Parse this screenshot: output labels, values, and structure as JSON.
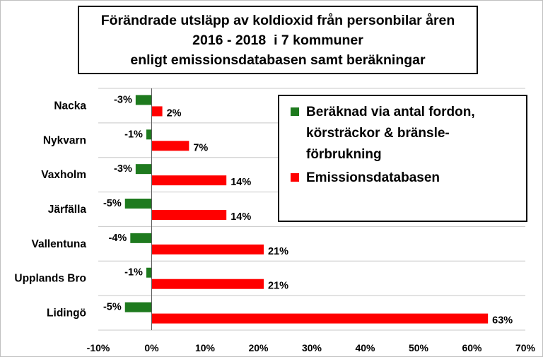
{
  "chart_data": {
    "type": "bar",
    "orientation": "horizontal",
    "title_lines": [
      "Förändrade utsläpp av koldioxid från personbilar åren",
      "2016 - 2018  i 7 kommuner",
      "enligt emissionsdatabasen samt beräkningar"
    ],
    "categories": [
      "Nacka",
      "Nykvarn",
      "Vaxholm",
      "Järfälla",
      "Vallentuna",
      "Upplands Bro",
      "Lidingö"
    ],
    "series": [
      {
        "name": "Beräknad via antal fordon, körsträckor & bränsle-förbrukning",
        "color": "#1e7a1e",
        "values": [
          -3,
          -1,
          -3,
          -5,
          -4,
          -1,
          -5
        ],
        "value_labels": [
          "-3%",
          "-1%",
          "-3%",
          "-5%",
          "-4%",
          "-1%",
          "-5%"
        ]
      },
      {
        "name": "Emissionsdatabasen",
        "color": "#ff0000",
        "values": [
          2,
          7,
          14,
          14,
          21,
          21,
          63
        ],
        "value_labels": [
          "2%",
          "7%",
          "14%",
          "14%",
          "21%",
          "21%",
          "63%"
        ]
      }
    ],
    "xlim": [
      -10,
      70
    ],
    "xticks": [
      -10,
      0,
      10,
      20,
      30,
      40,
      50,
      60,
      70
    ],
    "xtick_labels": [
      "-10%",
      "0%",
      "10%",
      "20%",
      "30%",
      "40%",
      "50%",
      "60%",
      "70%"
    ],
    "grid": true,
    "legend_position": "top-right",
    "legend_entries": [
      [
        "Beräknad via antal fordon,",
        "körsträckor & bränsle-",
        "förbrukning"
      ],
      [
        "Emissionsdatabasen"
      ]
    ]
  }
}
